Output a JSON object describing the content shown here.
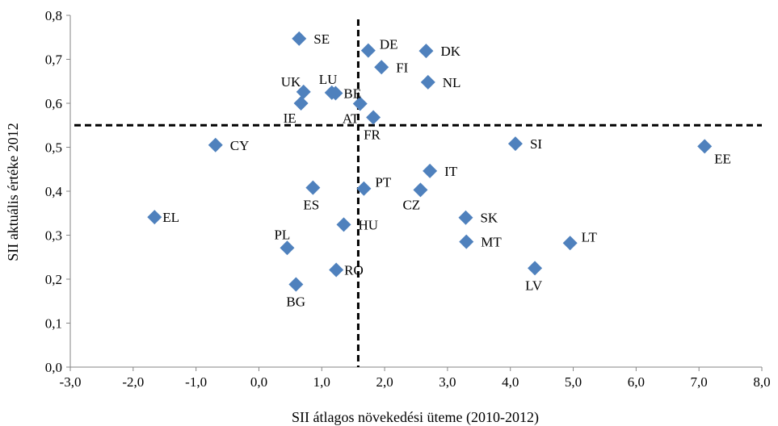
{
  "chart_data": {
    "type": "scatter",
    "xlabel": "SII átlagos növekedési üteme (2010-2012)",
    "ylabel": "SII aktuális értéke 2012",
    "xlim": [
      -3.0,
      8.0
    ],
    "ylim": [
      0.0,
      0.8
    ],
    "x_ticks": [
      -3.0,
      -2.0,
      -1.0,
      0.0,
      1.0,
      2.0,
      3.0,
      4.0,
      5.0,
      6.0,
      7.0,
      8.0
    ],
    "y_ticks": [
      0.0,
      0.1,
      0.2,
      0.3,
      0.4,
      0.5,
      0.6,
      0.7,
      0.8
    ],
    "x_tick_labels": [
      "-3,0",
      "-2,0",
      "-1,0",
      "0,0",
      "1,0",
      "2,0",
      "3,0",
      "4,0",
      "5,0",
      "6,0",
      "7,0",
      "8,0"
    ],
    "y_tick_labels": [
      "0,0",
      "0,1",
      "0,2",
      "0,3",
      "0,4",
      "0,5",
      "0,6",
      "0,7",
      "0,8"
    ],
    "grid": false,
    "marker_color": "#4f81bd",
    "reference_lines": {
      "x": 1.58,
      "y": 0.55,
      "style": "dashed"
    },
    "points": [
      {
        "label": "SE",
        "x": 0.64,
        "y": 0.747,
        "label_pos": "right"
      },
      {
        "label": "DE",
        "x": 1.74,
        "y": 0.72,
        "label_pos": "right-up"
      },
      {
        "label": "DK",
        "x": 2.66,
        "y": 0.719,
        "label_pos": "right"
      },
      {
        "label": "FI",
        "x": 1.95,
        "y": 0.682,
        "label_pos": "right"
      },
      {
        "label": "NL",
        "x": 2.69,
        "y": 0.648,
        "label_pos": "right"
      },
      {
        "label": "UK",
        "x": 0.71,
        "y": 0.626,
        "label_pos": "left-up"
      },
      {
        "label": "LU",
        "x": 1.16,
        "y": 0.624,
        "label_pos": "above"
      },
      {
        "label": "BE",
        "x": 1.22,
        "y": 0.623,
        "label_pos": "right-tight"
      },
      {
        "label": "IE",
        "x": 0.67,
        "y": 0.6,
        "label_pos": "left-down"
      },
      {
        "label": "AT",
        "x": 1.61,
        "y": 0.599,
        "label_pos": "left-down"
      },
      {
        "label": "FR",
        "x": 1.82,
        "y": 0.568,
        "label_pos": "below"
      },
      {
        "label": "CY",
        "x": -0.69,
        "y": 0.505,
        "label_pos": "right"
      },
      {
        "label": "SI",
        "x": 4.08,
        "y": 0.508,
        "label_pos": "right"
      },
      {
        "label": "EE",
        "x": 7.09,
        "y": 0.502,
        "label_pos": "right-down"
      },
      {
        "label": "IT",
        "x": 2.72,
        "y": 0.446,
        "label_pos": "right"
      },
      {
        "label": "PT",
        "x": 1.67,
        "y": 0.406,
        "label_pos": "right-up"
      },
      {
        "label": "ES",
        "x": 0.86,
        "y": 0.408,
        "label_pos": "below"
      },
      {
        "label": "CZ",
        "x": 2.57,
        "y": 0.403,
        "label_pos": "left-down"
      },
      {
        "label": "EL",
        "x": -1.66,
        "y": 0.341,
        "label_pos": "right-tight"
      },
      {
        "label": "SK",
        "x": 3.29,
        "y": 0.34,
        "label_pos": "right"
      },
      {
        "label": "HU",
        "x": 1.35,
        "y": 0.324,
        "label_pos": "right"
      },
      {
        "label": "PL",
        "x": 0.45,
        "y": 0.271,
        "label_pos": "above"
      },
      {
        "label": "MT",
        "x": 3.3,
        "y": 0.285,
        "label_pos": "right"
      },
      {
        "label": "LT",
        "x": 4.95,
        "y": 0.282,
        "label_pos": "right-up"
      },
      {
        "label": "RO",
        "x": 1.23,
        "y": 0.221,
        "label_pos": "right-tight"
      },
      {
        "label": "LV",
        "x": 4.39,
        "y": 0.225,
        "label_pos": "below"
      },
      {
        "label": "BG",
        "x": 0.59,
        "y": 0.188,
        "label_pos": "below"
      }
    ]
  }
}
